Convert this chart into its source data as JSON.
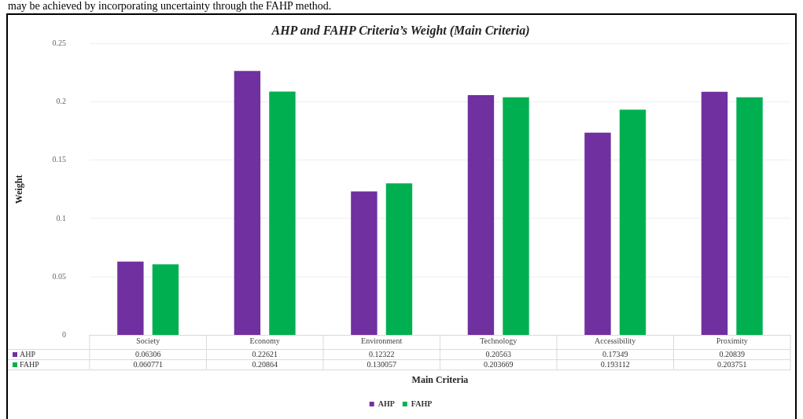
{
  "chart_data": {
    "type": "bar",
    "title": "AHP and FAHP Criteria’s Weight (Main Criteria)",
    "xlabel": "Main Criteria",
    "ylabel": "Weight",
    "annotations": [
      "may be achieved by incorporating uncertainty through the FAHP method."
    ],
    "categories": [
      "Society",
      "Economy",
      "Environment",
      "Technology",
      "Accessibility",
      "Proximity"
    ],
    "series": [
      {
        "name": "AHP",
        "color": "#7030a0",
        "values": [
          0.06306,
          0.22621,
          0.12322,
          0.20563,
          0.17349,
          0.20839
        ]
      },
      {
        "name": "FAHP",
        "color": "#00b050",
        "values": [
          0.060771,
          0.20864,
          0.130057,
          0.203669,
          0.193112,
          0.203751
        ]
      }
    ],
    "ylim": [
      0,
      0.25
    ],
    "yticks": [
      0,
      0.05,
      0.1,
      0.15,
      0.2,
      0.25
    ],
    "grid": "y",
    "legend": "bottom",
    "data_labels": true
  }
}
